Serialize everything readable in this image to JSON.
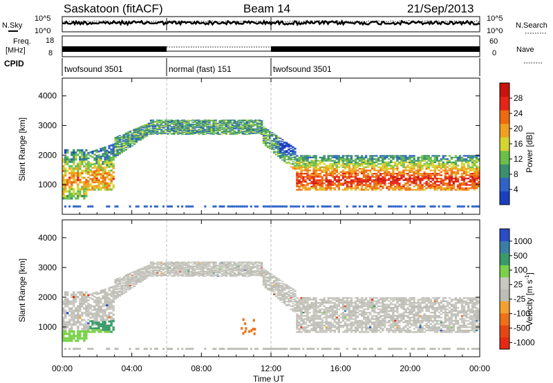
{
  "header": {
    "station": "Saskatoon (fitACF)",
    "beam": "Beam 14",
    "date": "21/Sep/2013"
  },
  "noise_panel": {
    "left_label": "N.Sky",
    "right_label": "N.Search",
    "left_ticks": [
      "10^5",
      "10^0"
    ],
    "right_ticks": [
      "10^5",
      "10^0"
    ]
  },
  "freq_panel": {
    "left_label_1": "Freq.",
    "left_label_2": "[MHz]",
    "left_ticks": [
      "18",
      "8"
    ],
    "right_label": "Nave",
    "right_ticks": [
      "60",
      "0"
    ]
  },
  "cpid_panel": {
    "label": "CPID",
    "segments": [
      {
        "name": "twofsound 3501",
        "start_hour": 0,
        "end_hour": 6
      },
      {
        "name": "normal (fast) 151",
        "start_hour": 6,
        "end_hour": 12
      },
      {
        "name": "twofsound 3501",
        "start_hour": 12,
        "end_hour": 24
      }
    ]
  },
  "colors": {
    "power_scale": [
      "#1a3fbf",
      "#2f63c8",
      "#3a8f6f",
      "#6cc04a",
      "#d6d430",
      "#f0a020",
      "#ee6a10",
      "#e52516",
      "#c8140c"
    ],
    "velocity_scale": [
      "#2a4cc8",
      "#3a7ea8",
      "#3a9a6a",
      "#7ad24a",
      "#c8c8c0",
      "#bdbdb5",
      "#f4a030",
      "#ee7018",
      "#e44614",
      "#e52a14"
    ]
  },
  "chart_data": [
    {
      "type": "heatmap",
      "name": "power",
      "ylabel": "Slant Range [km]",
      "ylim": [
        0,
        4600
      ],
      "y_ticks": [
        "1000",
        "2000",
        "3000",
        "4000"
      ],
      "xlim": [
        0,
        24
      ],
      "colorbar": {
        "label": "Power [dB]",
        "ticks": [
          "4",
          "8",
          "12",
          "16",
          "20",
          "24",
          "28"
        ],
        "range": [
          0,
          32
        ]
      }
    },
    {
      "type": "heatmap",
      "name": "velocity",
      "ylabel": "Slant Range [km]",
      "ylim": [
        0,
        4600
      ],
      "y_ticks": [
        "1000",
        "2000",
        "3000",
        "4000"
      ],
      "xlim": [
        0,
        24
      ],
      "x_ticks": [
        "00:00",
        "04:00",
        "08:00",
        "12:00",
        "16:00",
        "20:00",
        "00:00"
      ],
      "xlabel": "Time UT",
      "colorbar": {
        "label": "Velocity [m s",
        "label_superscript": "-1",
        "label_close": "]",
        "ticks": [
          "1000",
          "500",
          "100",
          "25",
          "-25",
          "-100",
          "-500",
          "-1000"
        ]
      }
    }
  ]
}
